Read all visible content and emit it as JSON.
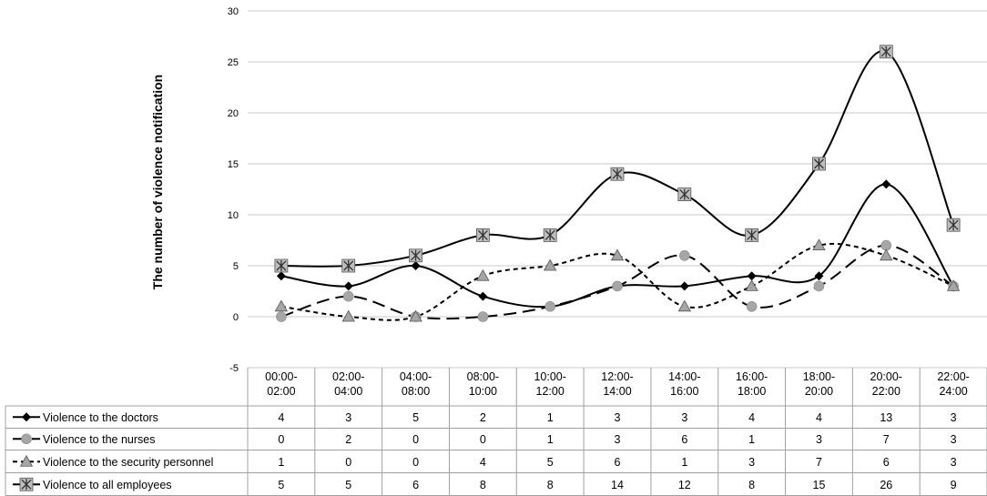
{
  "chart_data": {
    "type": "line",
    "title": "",
    "xlabel": "",
    "ylabel": "The  number of violence notification",
    "ylim": [
      -5,
      30
    ],
    "yticks": [
      -5,
      0,
      5,
      10,
      15,
      20,
      25,
      30
    ],
    "grid": true,
    "legend": "data-table-left",
    "categories": [
      [
        "00:00-",
        "02:00"
      ],
      [
        "02:00-",
        "04:00"
      ],
      [
        "04:00-",
        "08:00"
      ],
      [
        "08:00-",
        "10:00"
      ],
      [
        "10:00-",
        "12:00"
      ],
      [
        "12:00-",
        "14:00"
      ],
      [
        "14:00-",
        "16:00"
      ],
      [
        "16:00-",
        "18:00"
      ],
      [
        "18:00-",
        "20:00"
      ],
      [
        "20:00-",
        "22:00"
      ],
      [
        "22:00-",
        "24:00"
      ]
    ],
    "series": [
      {
        "name": "Violence to the doctors",
        "values": [
          4,
          3,
          5,
          2,
          1,
          3,
          3,
          4,
          4,
          13,
          3
        ],
        "marker": "diamond",
        "dash": "solid",
        "color": "#000000"
      },
      {
        "name": "Violence to the nurses",
        "values": [
          0,
          2,
          0,
          0,
          1,
          3,
          6,
          1,
          3,
          7,
          3
        ],
        "marker": "circle",
        "dash": "long-dash",
        "color": "#000000"
      },
      {
        "name": "Violence to the security personnel",
        "values": [
          1,
          0,
          0,
          4,
          5,
          6,
          1,
          3,
          7,
          6,
          3
        ],
        "marker": "triangle",
        "dash": "short-dash",
        "color": "#000000"
      },
      {
        "name": "Violence to all employees",
        "values": [
          5,
          5,
          6,
          8,
          8,
          14,
          12,
          8,
          15,
          26,
          9
        ],
        "marker": "star-box",
        "dash": "solid",
        "color": "#000000"
      }
    ]
  }
}
